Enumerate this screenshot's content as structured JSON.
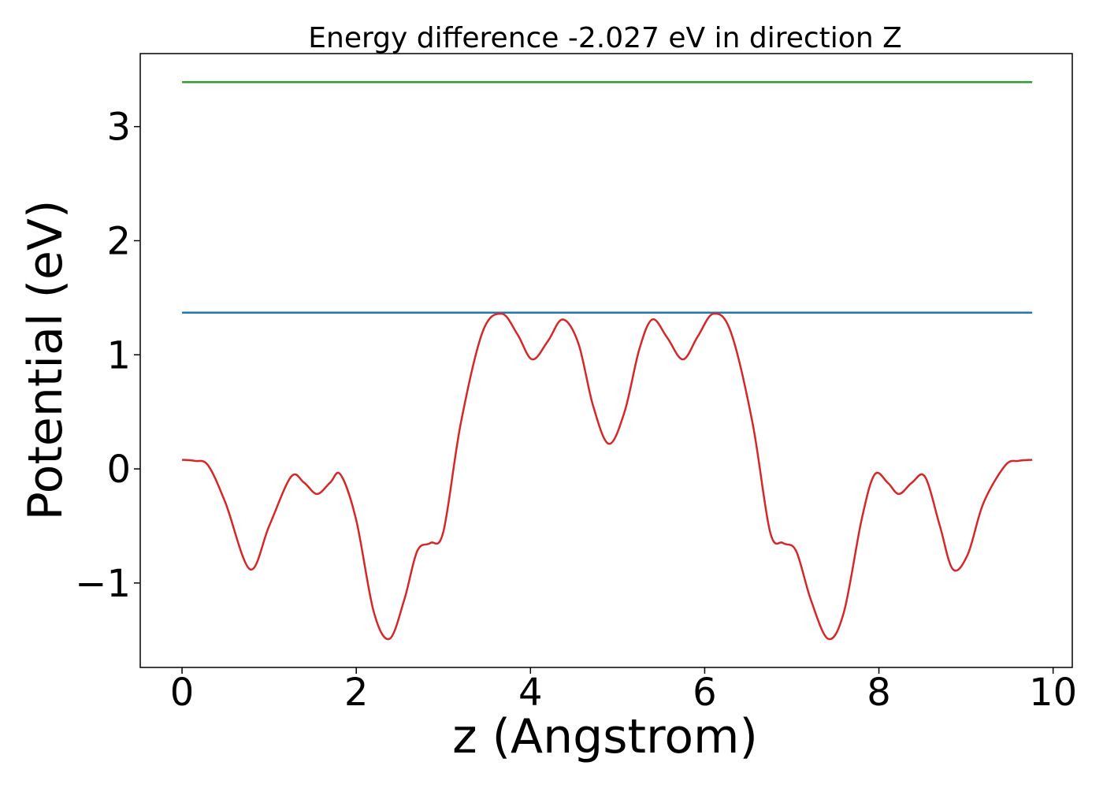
{
  "chart_data": {
    "type": "line",
    "title": "Energy difference -2.027 eV in direction Z",
    "xlabel": "z (Angstrom)",
    "ylabel": "Potential (eV)",
    "xlim": [
      -0.48,
      10.22
    ],
    "ylim": [
      -1.74,
      3.64
    ],
    "grid": false,
    "x_ticks": [
      {
        "value": 0,
        "label": "0"
      },
      {
        "value": 2,
        "label": "2"
      },
      {
        "value": 4,
        "label": "4"
      },
      {
        "value": 6,
        "label": "6"
      },
      {
        "value": 8,
        "label": "8"
      },
      {
        "value": 10,
        "label": "10"
      }
    ],
    "y_ticks": [
      {
        "value": -1,
        "label": "−1"
      },
      {
        "value": 0,
        "label": "0"
      },
      {
        "value": 1,
        "label": "1"
      },
      {
        "value": 2,
        "label": "2"
      },
      {
        "value": 3,
        "label": "3"
      }
    ],
    "series": [
      {
        "color": "#2ca02c",
        "x": [
          0,
          9.76
        ],
        "y": [
          3.39,
          3.39
        ]
      },
      {
        "color": "#1f77b4",
        "x": [
          0,
          9.76
        ],
        "y": [
          1.37,
          1.37
        ]
      },
      {
        "color": "#d62728",
        "x": [
          0,
          0.15,
          0.3,
          0.5,
          0.78,
          1.0,
          1.25,
          1.4,
          1.55,
          1.7,
          1.82,
          2.0,
          2.2,
          2.38,
          2.55,
          2.7,
          2.85,
          3.0,
          3.2,
          3.45,
          3.67,
          3.85,
          4.02,
          4.2,
          4.37,
          4.55,
          4.72,
          4.9,
          5.08,
          5.25,
          5.4,
          5.57,
          5.75,
          5.92,
          6.1,
          6.3,
          6.55,
          6.75,
          6.9,
          7.05,
          7.22,
          7.42,
          7.6,
          7.8,
          7.95,
          8.1,
          8.23,
          8.38,
          8.53,
          8.7,
          8.85,
          9.02,
          9.2,
          9.45,
          9.6,
          9.76
        ],
        "y": [
          0.08,
          0.07,
          0.03,
          -0.3,
          -0.88,
          -0.5,
          -0.07,
          -0.12,
          -0.22,
          -0.12,
          -0.05,
          -0.45,
          -1.25,
          -1.49,
          -1.15,
          -0.72,
          -0.65,
          -0.55,
          0.4,
          1.2,
          1.36,
          1.18,
          0.96,
          1.12,
          1.31,
          1.1,
          0.55,
          0.22,
          0.5,
          1.05,
          1.31,
          1.15,
          0.96,
          1.16,
          1.36,
          1.2,
          0.4,
          -0.55,
          -0.65,
          -0.72,
          -1.15,
          -1.49,
          -1.25,
          -0.45,
          -0.05,
          -0.12,
          -0.22,
          -0.12,
          -0.07,
          -0.5,
          -0.88,
          -0.75,
          -0.3,
          0.03,
          0.07,
          0.08
        ]
      }
    ]
  }
}
